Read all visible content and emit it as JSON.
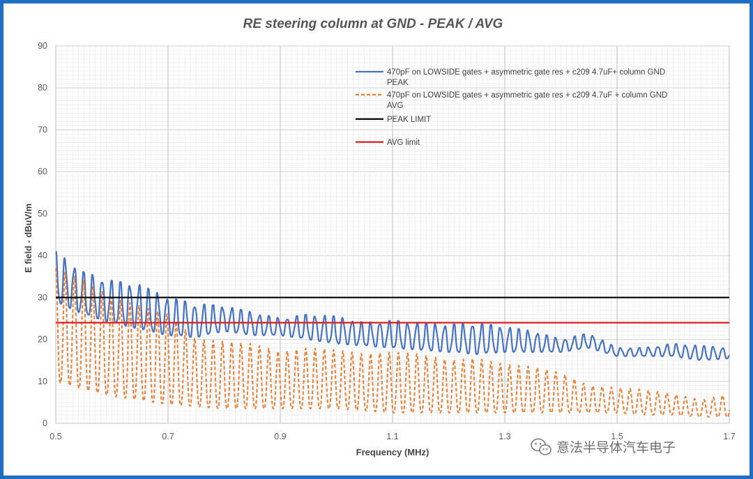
{
  "chart_data": {
    "type": "line",
    "title": "RE steering column at GND - PEAK / AVG",
    "xlabel": "Frequency (MHz)",
    "ylabel": "E field - dBuV/m",
    "xlim": [
      0.5,
      1.7
    ],
    "ylim": [
      0,
      90
    ],
    "x_ticks": [
      "0.5",
      "0.7",
      "0.9",
      "1.1",
      "1.3",
      "1.5",
      "1.7"
    ],
    "y_ticks": [
      "0",
      "10",
      "20",
      "30",
      "40",
      "50",
      "60",
      "70",
      "80",
      "90"
    ],
    "grid": true,
    "legend_position": "top-right",
    "series": [
      {
        "name": "470pF on LOWSIDE gates + asymmetric gate res + c209 4.7uF+ column GND PEAK",
        "name_lines": [
          "470pF on LOWSIDE gates + asymmetric gate res + c209 4.7uF+ column GND",
          "PEAK"
        ],
        "color": "#4472c4",
        "style": "solid",
        "x": [
          0.5,
          0.55,
          0.6,
          0.65,
          0.7,
          0.75,
          0.8,
          0.85,
          0.9,
          0.95,
          1.0,
          1.05,
          1.1,
          1.15,
          1.2,
          1.25,
          1.3,
          1.35,
          1.4,
          1.45,
          1.5,
          1.55,
          1.6,
          1.65,
          1.7
        ],
        "peaks": [
          41,
          36,
          34,
          33,
          30,
          28.5,
          28,
          26.5,
          25,
          26,
          25.5,
          24,
          24.5,
          24,
          23.5,
          24,
          23,
          22,
          20,
          21.5,
          18,
          18,
          19,
          18.5,
          18
        ],
        "troughs": [
          29,
          26,
          24,
          22.5,
          21,
          20.5,
          22,
          21,
          21,
          20,
          19,
          18.5,
          18,
          17.5,
          17,
          16.5,
          17,
          17,
          17,
          18,
          16,
          16,
          16,
          15,
          15.5
        ]
      },
      {
        "name": "470pF on LOWSIDE gates + asymmetric gate res + c209 4.7uF + column GND AVG",
        "name_lines": [
          "470pF on LOWSIDE gates + asymmetric gate res + c209 4.7uF + column GND",
          "AVG"
        ],
        "color": "#ed7d31",
        "style": "dashed",
        "x": [
          0.5,
          0.55,
          0.6,
          0.65,
          0.7,
          0.75,
          0.8,
          0.85,
          0.9,
          0.95,
          1.0,
          1.05,
          1.1,
          1.15,
          1.2,
          1.25,
          1.3,
          1.35,
          1.4,
          1.45,
          1.5,
          1.55,
          1.6,
          1.65,
          1.7
        ],
        "peaks": [
          37,
          34,
          30,
          28,
          26,
          20,
          19.5,
          19,
          17,
          18,
          17.5,
          16.5,
          17,
          16.5,
          15,
          15.5,
          14,
          13.5,
          12,
          9,
          8.5,
          8,
          7,
          5.5,
          7
        ],
        "troughs": [
          10,
          8,
          6.5,
          5.5,
          4.5,
          4,
          3.5,
          3.5,
          3.5,
          3.5,
          3.5,
          3,
          2.5,
          2.5,
          2.5,
          2.5,
          2.5,
          2.5,
          2.5,
          2.5,
          2.5,
          2,
          2,
          1.5,
          1.5
        ]
      },
      {
        "name": "PEAK LIMIT",
        "name_lines": [
          "PEAK LIMIT"
        ],
        "color": "#000000",
        "style": "solid",
        "x": [
          0.5,
          1.7
        ],
        "y": [
          30,
          30
        ]
      },
      {
        "name": "AVG limit",
        "name_lines": [
          "AVG limit"
        ],
        "color": "#e0191c",
        "style": "solid",
        "x": [
          0.5,
          1.7
        ],
        "y": [
          24,
          24
        ]
      }
    ]
  },
  "watermark": {
    "text": "意法半导体汽车电子",
    "icon": "wechat-icon"
  }
}
